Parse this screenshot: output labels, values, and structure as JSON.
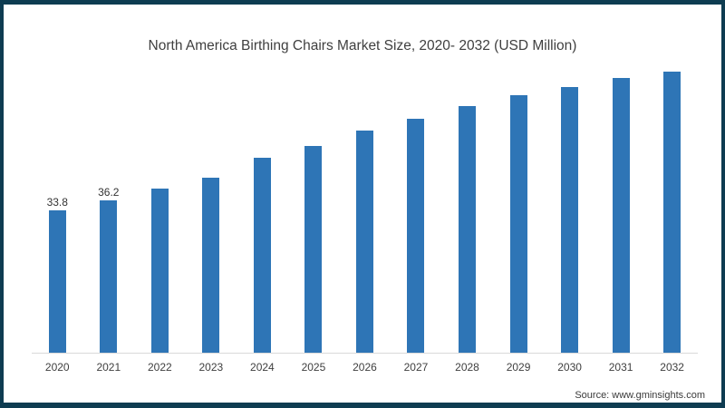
{
  "page": {
    "frame_border_color": "#0e3c51",
    "background": "#ffffff"
  },
  "chart_data": {
    "type": "bar",
    "title": "North America Birthing Chairs Market Size, 2020- 2032 (USD Million)",
    "categories": [
      "2020",
      "2021",
      "2022",
      "2023",
      "2024",
      "2025",
      "2026",
      "2027",
      "2028",
      "2029",
      "2030",
      "2031",
      "2032"
    ],
    "values": [
      33.8,
      36.2,
      39.1,
      41.6,
      46.3,
      49.1,
      52.8,
      55.6,
      58.6,
      61.2,
      63.3,
      65.3,
      66.8
    ],
    "data_labels": {
      "2020": "33.8",
      "2021": "36.2"
    },
    "bar_color": "#2e75b6",
    "axis_line_color": "#d9d9d9",
    "title_color": "#3f3f3f",
    "tick_color": "#3f3f3f",
    "xlabel": "",
    "ylabel": "",
    "ylim": [
      0,
      71
    ],
    "grid": false,
    "legend": false
  },
  "source": {
    "label": "Source: www.gminsights.com"
  }
}
